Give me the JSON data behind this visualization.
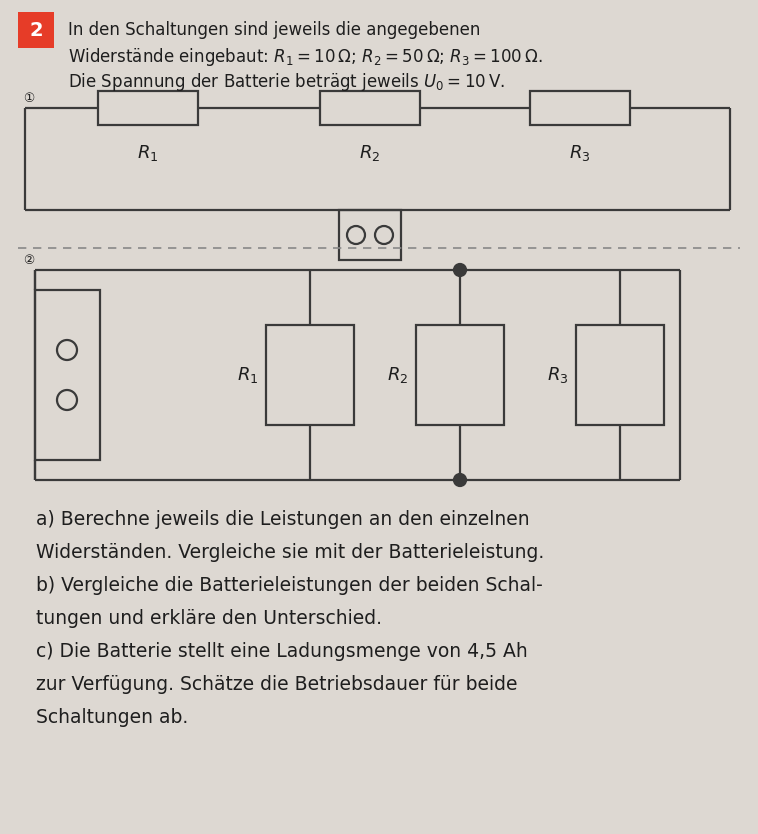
{
  "background_color": "#ddd8d2",
  "title_number": "2",
  "title_number_bg": "#e63c28",
  "title_number_color": "#ffffff",
  "intro_text_line1": "In den Schaltungen sind jeweils die angegebenen",
  "intro_text_line2": "Widerstände eingebaut: $R_1$ = 10 Ω; $R_2$ = 50 Ω; $R_3$ = 100 Ω.",
  "intro_text_line3": "Die Spannung der Batterie beträgt jeweils $U_0$ = 10 V.",
  "circuit1_label": "①",
  "circuit2_label": "②",
  "R1_label": "$R_1$",
  "R2_label": "$R_2$",
  "R3_label": "$R_3$",
  "line_color": "#3a3a3a",
  "text_color": "#1e1e1e",
  "dot_color": "#1e1e1e",
  "dashed_line_color": "#888888"
}
